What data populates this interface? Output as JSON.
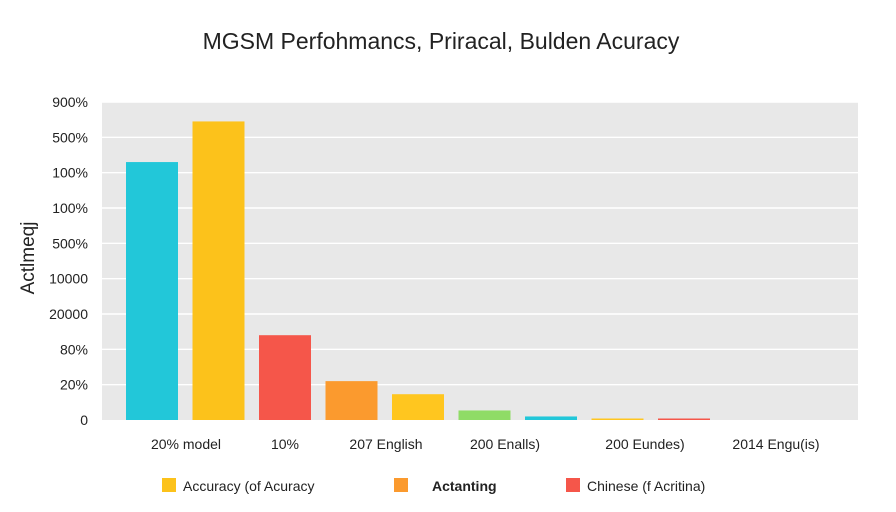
{
  "chart_data": {
    "type": "bar",
    "title": "MGSM Perfohmancs, Priracal, Bulden Acuracy",
    "ylabel": "Actlmeqj",
    "xlabel": "",
    "y_tick_labels": [
      "0",
      "20%",
      "80%",
      "20000",
      "10000",
      "500%",
      "100%",
      "100%",
      "500%",
      "900%"
    ],
    "x_tick_labels": [
      "20% model",
      "10%",
      "207 English",
      "200 Enalls)",
      "200 Eundes)",
      "2014 Engu(is)"
    ],
    "ylim": [
      0,
      9
    ],
    "bars": [
      {
        "value": 7.3,
        "color": "#22c7d9"
      },
      {
        "value": 8.45,
        "color": "#fcc21b"
      },
      {
        "value": 2.4,
        "color": "#f5564a"
      },
      {
        "value": 1.1,
        "color": "#fb9a2e"
      },
      {
        "value": 0.73,
        "color": "#ffc61f"
      },
      {
        "value": 0.27,
        "color": "#8fdc66"
      },
      {
        "value": 0.1,
        "color": "#22c7d9"
      },
      {
        "value": 0.02,
        "color": "#ffc61f"
      },
      {
        "value": 0.04,
        "color": "#f5564a"
      }
    ],
    "legend": [
      {
        "label": "Accuracy (of Acuracy",
        "color": "#fcc21b",
        "bold": false
      },
      {
        "label": "Actanting",
        "color": "#fb9a2e",
        "bold": true
      },
      {
        "label": "Chinese (f Acritina)",
        "color": "#f5564a",
        "bold": false
      }
    ],
    "legend_position": "bottom",
    "grid": true,
    "background_color": "#e8e8e8"
  }
}
